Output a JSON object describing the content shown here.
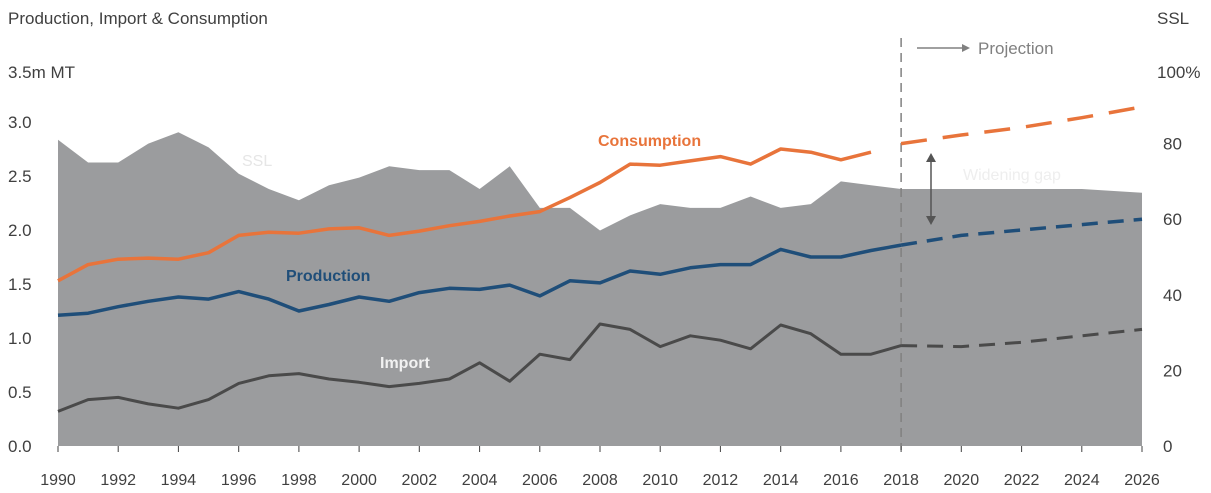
{
  "chart_data": {
    "type": "line",
    "title": "Production, Import & Consumption",
    "left_axis": {
      "label": "3.5m MT",
      "ylim": [
        0,
        3.5
      ],
      "ticks": [
        "0.0",
        "0.5",
        "1.0",
        "1.5",
        "2.0",
        "2.5",
        "3.0"
      ]
    },
    "right_axis": {
      "title": "SSL",
      "label": "100%",
      "ylim": [
        0,
        100
      ],
      "ticks": [
        "0",
        "20",
        "40",
        "60",
        "80"
      ]
    },
    "x_axis": {
      "xlim": [
        1990,
        2026
      ],
      "ticks": [
        "1990",
        "1992",
        "1994",
        "1996",
        "1998",
        "2000",
        "2002",
        "2004",
        "2006",
        "2008",
        "2010",
        "2012",
        "2014",
        "2016",
        "2018",
        "2020",
        "2022",
        "2024",
        "2026"
      ]
    },
    "projection_start": 2018,
    "projection_label": "Projection",
    "annotations": {
      "ssl": "SSL",
      "widening_gap": "Widening gap",
      "consumption": "Consumption",
      "production": "Production",
      "import": "Import"
    },
    "colors": {
      "ssl_area": "#9b9c9e",
      "consumption": "#e8743b",
      "production": "#1f4e79",
      "import": "#4a4a4a",
      "projection_line": "#808080",
      "axis_text": "#404040"
    },
    "series": [
      {
        "name": "SSL",
        "axis": "right",
        "style": "area",
        "x": [
          1990,
          1991,
          1992,
          1993,
          1994,
          1995,
          1996,
          1997,
          1998,
          1999,
          2000,
          2001,
          2002,
          2003,
          2004,
          2005,
          2006,
          2007,
          2008,
          2009,
          2010,
          2011,
          2012,
          2013,
          2014,
          2015,
          2016,
          2017,
          2018,
          2020,
          2022,
          2024,
          2026
        ],
        "values": [
          81,
          75,
          75,
          80,
          83,
          79,
          72,
          68,
          65,
          69,
          71,
          74,
          73,
          73,
          68,
          74,
          63,
          63,
          57,
          61,
          64,
          63,
          63,
          66,
          63,
          64,
          70,
          69,
          68,
          68,
          68,
          68,
          67
        ]
      },
      {
        "name": "Consumption",
        "axis": "left",
        "style": "solid",
        "x": [
          1990,
          1991,
          1992,
          1993,
          1994,
          1995,
          1996,
          1997,
          1998,
          1999,
          2000,
          2001,
          2002,
          2003,
          2004,
          2005,
          2006,
          2007,
          2008,
          2009,
          2010,
          2011,
          2012,
          2013,
          2014,
          2015,
          2016,
          2017
        ],
        "values": [
          1.53,
          1.68,
          1.73,
          1.74,
          1.73,
          1.79,
          1.95,
          1.98,
          1.97,
          2.01,
          2.02,
          1.95,
          1.99,
          2.04,
          2.08,
          2.13,
          2.17,
          2.3,
          2.44,
          2.61,
          2.6,
          2.64,
          2.68,
          2.61,
          2.75,
          2.72,
          2.65,
          2.72
        ]
      },
      {
        "name": "Consumption projection",
        "axis": "left",
        "style": "dashed",
        "x": [
          2018,
          2020,
          2022,
          2024,
          2026
        ],
        "values": [
          2.8,
          2.88,
          2.95,
          3.04,
          3.14
        ]
      },
      {
        "name": "Production",
        "axis": "left",
        "style": "solid",
        "x": [
          1990,
          1991,
          1992,
          1993,
          1994,
          1995,
          1996,
          1997,
          1998,
          1999,
          2000,
          2001,
          2002,
          2003,
          2004,
          2005,
          2006,
          2007,
          2008,
          2009,
          2010,
          2011,
          2012,
          2013,
          2014,
          2015,
          2016,
          2017,
          2018
        ],
        "values": [
          1.21,
          1.23,
          1.29,
          1.34,
          1.38,
          1.36,
          1.43,
          1.36,
          1.25,
          1.31,
          1.38,
          1.34,
          1.42,
          1.46,
          1.45,
          1.49,
          1.39,
          1.53,
          1.51,
          1.62,
          1.59,
          1.65,
          1.68,
          1.68,
          1.82,
          1.75,
          1.75,
          1.81,
          1.86
        ]
      },
      {
        "name": "Production projection",
        "axis": "left",
        "style": "dashed",
        "x": [
          2018,
          2020,
          2022,
          2024,
          2026
        ],
        "values": [
          1.86,
          1.95,
          2.0,
          2.05,
          2.1
        ]
      },
      {
        "name": "Import",
        "axis": "left",
        "style": "solid",
        "x": [
          1990,
          1991,
          1992,
          1993,
          1994,
          1995,
          1996,
          1997,
          1998,
          1999,
          2000,
          2001,
          2002,
          2003,
          2004,
          2005,
          2006,
          2007,
          2008,
          2009,
          2010,
          2011,
          2012,
          2013,
          2014,
          2015,
          2016,
          2017,
          2018
        ],
        "values": [
          0.32,
          0.43,
          0.45,
          0.39,
          0.35,
          0.43,
          0.58,
          0.65,
          0.67,
          0.62,
          0.59,
          0.55,
          0.58,
          0.62,
          0.77,
          0.6,
          0.85,
          0.8,
          1.13,
          1.08,
          0.92,
          1.02,
          0.98,
          0.9,
          1.12,
          1.04,
          0.85,
          0.85,
          0.93
        ]
      },
      {
        "name": "Import projection",
        "axis": "left",
        "style": "dashed",
        "x": [
          2018,
          2020,
          2022,
          2024,
          2026
        ],
        "values": [
          0.93,
          0.92,
          0.96,
          1.02,
          1.08
        ]
      }
    ]
  }
}
